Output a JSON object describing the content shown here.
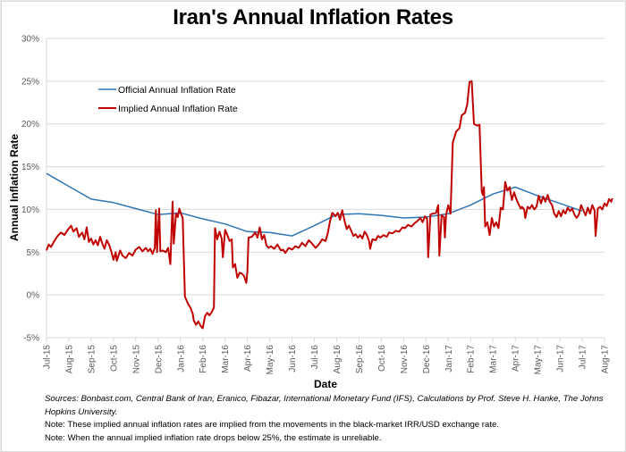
{
  "chart_data": {
    "type": "line",
    "title": "Iran's Annual Inflation Rates",
    "xlabel": "Date",
    "ylabel": "Annual Inflation Rate",
    "ylim": [
      -5,
      30
    ],
    "yticks": [
      "-5%",
      "0%",
      "5%",
      "10%",
      "15%",
      "20%",
      "25%",
      "30%"
    ],
    "ytick_values": [
      -5,
      0,
      5,
      10,
      15,
      20,
      25,
      30
    ],
    "grid": true,
    "legend_position": "top-left",
    "categories": [
      "Jul-15",
      "Aug-15",
      "Sep-15",
      "Oct-15",
      "Nov-15",
      "Dec-15",
      "Jan-16",
      "Feb-16",
      "Mar-16",
      "Apr-16",
      "May-16",
      "Jun-16",
      "Jul-16",
      "Aug-16",
      "Sep-16",
      "Oct-16",
      "Nov-16",
      "Dec-16",
      "Jan-17",
      "Feb-17",
      "Mar-17",
      "Apr-17",
      "May-17",
      "Jun-17",
      "Jul-17",
      "Aug-17"
    ],
    "x_unit": "months since Jul-15",
    "series": [
      {
        "name": "Official Annual Inflation Rate",
        "color": "#2e75b6",
        "points": [
          [
            0,
            14.2
          ],
          [
            1,
            12.7
          ],
          [
            2,
            11.2
          ],
          [
            3,
            10.8
          ],
          [
            4,
            10.1
          ],
          [
            5,
            9.4
          ],
          [
            6,
            9.6
          ],
          [
            7,
            8.9
          ],
          [
            8,
            8.3
          ],
          [
            9,
            7.4
          ],
          [
            10,
            7.3
          ],
          [
            11,
            6.9
          ],
          [
            12,
            8.1
          ],
          [
            13,
            9.4
          ],
          [
            14,
            9.5
          ],
          [
            15,
            9.3
          ],
          [
            16,
            9.0
          ],
          [
            17,
            9.1
          ],
          [
            18,
            9.5
          ],
          [
            19,
            10.5
          ],
          [
            20,
            11.8
          ],
          [
            21,
            12.6
          ],
          [
            22,
            11.6
          ],
          [
            23,
            10.7
          ],
          [
            24,
            9.8
          ]
        ]
      },
      {
        "name": "Implied Annual Inflation Rate",
        "color": "#c00000",
        "points": [
          [
            0,
            5.2
          ],
          [
            0.1,
            5.9
          ],
          [
            0.2,
            5.6
          ],
          [
            0.35,
            6.3
          ],
          [
            0.5,
            6.9
          ],
          [
            0.65,
            7.3
          ],
          [
            0.8,
            7.0
          ],
          [
            0.95,
            7.6
          ],
          [
            1.1,
            8.1
          ],
          [
            1.2,
            7.4
          ],
          [
            1.35,
            7.8
          ],
          [
            1.45,
            6.8
          ],
          [
            1.6,
            7.3
          ],
          [
            1.7,
            6.5
          ],
          [
            1.8,
            7.9
          ],
          [
            1.9,
            6.2
          ],
          [
            2.0,
            6.6
          ],
          [
            2.1,
            5.9
          ],
          [
            2.2,
            6.4
          ],
          [
            2.3,
            5.8
          ],
          [
            2.4,
            6.8
          ],
          [
            2.5,
            6.0
          ],
          [
            2.6,
            5.4
          ],
          [
            2.7,
            6.4
          ],
          [
            2.8,
            5.9
          ],
          [
            2.9,
            5.1
          ],
          [
            3.0,
            4.1
          ],
          [
            3.1,
            5.0
          ],
          [
            3.15,
            4.0
          ],
          [
            3.3,
            5.2
          ],
          [
            3.4,
            4.6
          ],
          [
            3.55,
            4.3
          ],
          [
            3.7,
            4.9
          ],
          [
            3.85,
            4.6
          ],
          [
            4.0,
            5.3
          ],
          [
            4.15,
            5.6
          ],
          [
            4.3,
            5.1
          ],
          [
            4.45,
            5.5
          ],
          [
            4.55,
            5.1
          ],
          [
            4.65,
            5.4
          ],
          [
            4.75,
            4.8
          ],
          [
            4.85,
            5.5
          ],
          [
            4.9,
            9.9
          ],
          [
            4.95,
            5.0
          ],
          [
            5.05,
            10.1
          ],
          [
            5.1,
            5.1
          ],
          [
            5.2,
            5.2
          ],
          [
            5.35,
            5.0
          ],
          [
            5.45,
            5.5
          ],
          [
            5.55,
            3.6
          ],
          [
            5.65,
            10.9
          ],
          [
            5.7,
            6.0
          ],
          [
            5.8,
            9.5
          ],
          [
            5.88,
            9.1
          ],
          [
            5.95,
            10.1
          ],
          [
            6.02,
            9.5
          ],
          [
            6.1,
            9.0
          ],
          [
            6.2,
            -0.2
          ],
          [
            6.35,
            -1.1
          ],
          [
            6.45,
            -1.5
          ],
          [
            6.55,
            -2.2
          ],
          [
            6.6,
            -3.0
          ],
          [
            6.7,
            -3.5
          ],
          [
            6.8,
            -3.1
          ],
          [
            6.9,
            -3.6
          ],
          [
            7.0,
            -3.9
          ],
          [
            7.1,
            -2.5
          ],
          [
            7.2,
            -2.1
          ],
          [
            7.3,
            -2.4
          ],
          [
            7.4,
            -2.0
          ],
          [
            7.5,
            -1.5
          ],
          [
            7.55,
            7.8
          ],
          [
            7.65,
            6.5
          ],
          [
            7.75,
            7.4
          ],
          [
            7.85,
            6.6
          ],
          [
            7.9,
            4.4
          ],
          [
            8.0,
            7.6
          ],
          [
            8.1,
            7.0
          ],
          [
            8.2,
            6.3
          ],
          [
            8.3,
            6.5
          ],
          [
            8.35,
            3.2
          ],
          [
            8.45,
            3.6
          ],
          [
            8.55,
            2.0
          ],
          [
            8.65,
            2.6
          ],
          [
            8.75,
            2.5
          ],
          [
            8.85,
            2.2
          ],
          [
            8.95,
            1.4
          ],
          [
            9.0,
            2.7
          ],
          [
            9.05,
            6.7
          ],
          [
            9.2,
            6.8
          ],
          [
            9.35,
            7.3
          ],
          [
            9.45,
            6.7
          ],
          [
            9.55,
            7.9
          ],
          [
            9.65,
            6.5
          ],
          [
            9.75,
            7.0
          ],
          [
            9.85,
            5.8
          ],
          [
            9.95,
            5.5
          ],
          [
            10.05,
            5.7
          ],
          [
            10.2,
            5.4
          ],
          [
            10.35,
            5.9
          ],
          [
            10.5,
            5.2
          ],
          [
            10.6,
            5.3
          ],
          [
            10.7,
            4.9
          ],
          [
            10.85,
            5.5
          ],
          [
            11.0,
            5.3
          ],
          [
            11.15,
            5.7
          ],
          [
            11.3,
            5.5
          ],
          [
            11.45,
            6.1
          ],
          [
            11.6,
            5.7
          ],
          [
            11.75,
            6.4
          ],
          [
            11.9,
            6.0
          ],
          [
            12.05,
            5.5
          ],
          [
            12.2,
            5.9
          ],
          [
            12.35,
            6.5
          ],
          [
            12.5,
            6.3
          ],
          [
            12.6,
            7.2
          ],
          [
            12.7,
            8.6
          ],
          [
            12.8,
            9.6
          ],
          [
            12.95,
            9.2
          ],
          [
            13.05,
            9.6
          ],
          [
            13.15,
            8.8
          ],
          [
            13.25,
            9.9
          ],
          [
            13.35,
            8.7
          ],
          [
            13.45,
            7.7
          ],
          [
            13.55,
            8.1
          ],
          [
            13.65,
            7.5
          ],
          [
            13.75,
            6.9
          ],
          [
            13.85,
            7.1
          ],
          [
            13.95,
            6.7
          ],
          [
            14.05,
            7.0
          ],
          [
            14.15,
            6.6
          ],
          [
            14.25,
            7.4
          ],
          [
            14.35,
            7.0
          ],
          [
            14.45,
            6.3
          ],
          [
            14.5,
            5.4
          ],
          [
            14.6,
            6.5
          ],
          [
            14.75,
            6.4
          ],
          [
            14.85,
            6.9
          ],
          [
            14.95,
            6.7
          ],
          [
            15.1,
            7.0
          ],
          [
            15.25,
            6.8
          ],
          [
            15.35,
            7.3
          ],
          [
            15.5,
            7.2
          ],
          [
            15.65,
            7.5
          ],
          [
            15.8,
            7.4
          ],
          [
            15.95,
            7.9
          ],
          [
            16.05,
            7.8
          ],
          [
            16.2,
            8.2
          ],
          [
            16.35,
            8.0
          ],
          [
            16.5,
            8.4
          ],
          [
            16.6,
            8.6
          ],
          [
            16.75,
            9.0
          ],
          [
            16.85,
            8.5
          ],
          [
            16.95,
            9.2
          ],
          [
            17.05,
            8.9
          ],
          [
            17.1,
            4.4
          ],
          [
            17.2,
            9.4
          ],
          [
            17.3,
            9.5
          ],
          [
            17.45,
            9.6
          ],
          [
            17.55,
            10.5
          ],
          [
            17.6,
            4.6
          ],
          [
            17.7,
            9.3
          ],
          [
            17.8,
            9.1
          ],
          [
            17.85,
            6.7
          ],
          [
            17.9,
            9.4
          ],
          [
            18.0,
            10.5
          ],
          [
            18.1,
            9.5
          ],
          [
            18.2,
            17.8
          ],
          [
            18.35,
            19.1
          ],
          [
            18.5,
            19.5
          ],
          [
            18.6,
            21.0
          ],
          [
            18.75,
            21.3
          ],
          [
            18.85,
            22.3
          ],
          [
            18.95,
            24.9
          ],
          [
            19.05,
            25.0
          ],
          [
            19.15,
            20.0
          ],
          [
            19.3,
            19.8
          ],
          [
            19.4,
            19.9
          ],
          [
            19.5,
            12.1
          ],
          [
            19.55,
            11.7
          ],
          [
            19.6,
            12.6
          ],
          [
            19.65,
            8.0
          ],
          [
            19.75,
            8.5
          ],
          [
            19.85,
            7.0
          ],
          [
            19.95,
            9.0
          ],
          [
            20.05,
            8.0
          ],
          [
            20.15,
            8.5
          ],
          [
            20.25,
            7.8
          ],
          [
            20.35,
            10.2
          ],
          [
            20.45,
            10.0
          ],
          [
            20.55,
            13.2
          ],
          [
            20.65,
            12.2
          ],
          [
            20.75,
            12.6
          ],
          [
            20.85,
            11.1
          ],
          [
            20.95,
            12.0
          ],
          [
            21.05,
            11.2
          ],
          [
            21.15,
            10.6
          ],
          [
            21.25,
            10.1
          ],
          [
            21.3,
            10.3
          ],
          [
            21.4,
            10.0
          ],
          [
            21.45,
            9.0
          ],
          [
            21.55,
            10.3
          ],
          [
            21.65,
            10.1
          ],
          [
            21.75,
            10.5
          ],
          [
            21.85,
            10.0
          ],
          [
            21.95,
            10.3
          ],
          [
            22.05,
            11.6
          ],
          [
            22.15,
            10.7
          ],
          [
            22.25,
            11.5
          ],
          [
            22.35,
            10.9
          ],
          [
            22.45,
            11.7
          ],
          [
            22.55,
            10.9
          ],
          [
            22.65,
            10.5
          ],
          [
            22.75,
            9.5
          ],
          [
            22.85,
            9.1
          ],
          [
            22.95,
            9.8
          ],
          [
            23.05,
            9.2
          ],
          [
            23.15,
            9.9
          ],
          [
            23.25,
            9.5
          ],
          [
            23.35,
            10.2
          ],
          [
            23.45,
            9.8
          ],
          [
            23.55,
            10.1
          ],
          [
            23.65,
            9.4
          ],
          [
            23.75,
            9.0
          ],
          [
            23.85,
            9.4
          ],
          [
            23.95,
            10.5
          ],
          [
            24.05,
            9.9
          ],
          [
            24.15,
            9.3
          ],
          [
            24.25,
            10.2
          ],
          [
            24.35,
            9.5
          ],
          [
            24.45,
            10.5
          ],
          [
            24.55,
            9.9
          ],
          [
            24.6,
            6.9
          ],
          [
            24.7,
            10.1
          ],
          [
            24.8,
            10.3
          ],
          [
            24.9,
            10.0
          ],
          [
            25.0,
            10.7
          ],
          [
            25.1,
            10.4
          ],
          [
            25.2,
            11.2
          ],
          [
            25.3,
            10.9
          ],
          [
            25.35,
            11.3
          ]
        ]
      }
    ]
  },
  "notes": {
    "sources": "Sources: Bonbast.com, Central Bank of Iran, Eranico, Fibazar, International Monetary Fund (IFS), Calculations by Prof. Steve H. Hanke, The Johns Hopkins University.",
    "note1": "Note: These implied annual inflation rates are implied from the movements in the black-market IRR/USD exchange rate.",
    "note2": "Note: When the annual implied inflation rate drops below 25%, the estimate is unreliable."
  }
}
